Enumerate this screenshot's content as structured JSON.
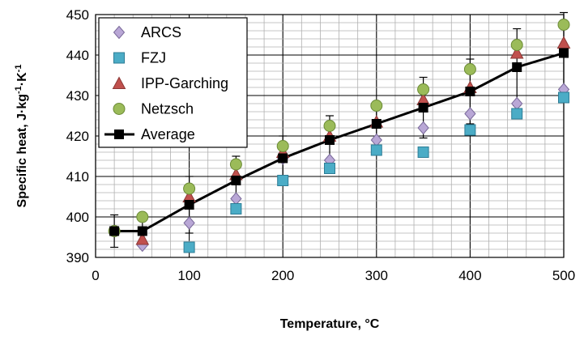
{
  "chart_data": {
    "type": "scatter",
    "title": "",
    "xlabel": "Temperature, °C",
    "ylabel": "Specific heat, J·kg⁻¹·K⁻¹",
    "ylabel_parts": [
      "Specific heat, J·kg",
      "-1",
      "·K",
      "-1"
    ],
    "xlim": [
      0,
      500
    ],
    "ylim": [
      390,
      450
    ],
    "x_ticks": [
      0,
      100,
      200,
      300,
      400,
      500
    ],
    "y_ticks": [
      390,
      400,
      410,
      420,
      430,
      440,
      450
    ],
    "x_minor_grid_step": 20,
    "y_minor_grid_step": 2,
    "grid": true,
    "legend_position": "top-left",
    "series": [
      {
        "name": "ARCS",
        "marker": "diamond",
        "color": "#b9a7d6",
        "edge": "#7a6a9a",
        "x": [
          50,
          100,
          150,
          200,
          250,
          300,
          350,
          400,
          450,
          500
        ],
        "y": [
          393,
          398.5,
          404.5,
          414.5,
          414,
          419,
          422,
          425.5,
          428,
          431.5
        ]
      },
      {
        "name": "FZJ",
        "marker": "square",
        "color": "#4bacc6",
        "edge": "#2d7d96",
        "x": [
          100,
          150,
          200,
          250,
          300,
          350,
          400,
          450,
          500
        ],
        "y": [
          392.5,
          402,
          409,
          412,
          416.5,
          416,
          421.5,
          425.5,
          429.5
        ]
      },
      {
        "name": "IPP-Garching",
        "marker": "triangle",
        "color": "#c0504d",
        "edge": "#8c3836",
        "x": [
          50,
          100,
          150,
          200,
          250,
          300,
          350,
          400,
          450,
          500
        ],
        "y": [
          394.5,
          405,
          410.5,
          416,
          420,
          423.5,
          429,
          432,
          440.5,
          443
        ]
      },
      {
        "name": "Netzsch",
        "marker": "circle",
        "color": "#9bbb59",
        "edge": "#6a8a35",
        "x": [
          20,
          50,
          100,
          150,
          200,
          250,
          300,
          350,
          400,
          450,
          500
        ],
        "y": [
          396.5,
          400,
          407,
          413,
          417.5,
          422.5,
          427.5,
          431.5,
          436.5,
          442.5,
          447.5
        ]
      },
      {
        "name": "Average",
        "marker": "square-line",
        "color": "#000000",
        "edge": "#000000",
        "x": [
          20,
          50,
          100,
          150,
          200,
          250,
          300,
          350,
          400,
          450,
          500
        ],
        "y": [
          396.5,
          396.5,
          403,
          409,
          414.5,
          419,
          423,
          427,
          431,
          437,
          440.5
        ],
        "yerr": [
          4,
          3.5,
          7,
          6,
          5.5,
          6,
          5.5,
          7.5,
          8,
          9.5,
          10
        ]
      }
    ]
  }
}
